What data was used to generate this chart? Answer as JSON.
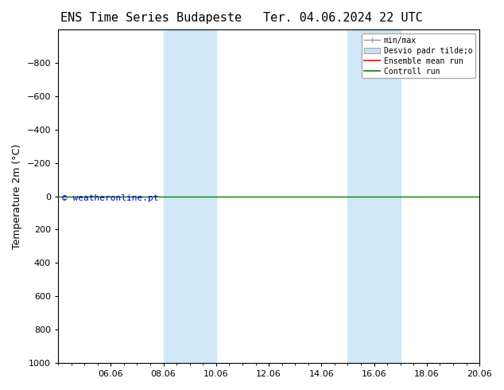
{
  "title_left": "ENS Time Series Budapeste",
  "title_right": "Ter. 04.06.2024 22 UTC",
  "ylabel": "Temperature 2m (°C)",
  "ylim": [
    -1000,
    1000
  ],
  "yticks": [
    -800,
    -600,
    -400,
    -200,
    0,
    200,
    400,
    600,
    800,
    1000
  ],
  "x_min": 0,
  "x_max": 16,
  "x_tick_labels": [
    "06.06",
    "08.06",
    "10.06",
    "12.06",
    "14.06",
    "16.06",
    "18.06",
    "20.06"
  ],
  "x_tick_positions": [
    2,
    4,
    6,
    8,
    10,
    12,
    14,
    16
  ],
  "shaded_bands": [
    {
      "x_start": 4,
      "x_end": 6
    },
    {
      "x_start": 11,
      "x_end": 13
    }
  ],
  "horizontal_line_y": 0,
  "control_run_color": "#008000",
  "ensemble_mean_color": "#ff0000",
  "min_max_color": "#999999",
  "desvio_color": "#c8dff0",
  "background_color": "#ffffff",
  "band_color": "#d0e8f8",
  "watermark_text": "© weatheronline.pt",
  "watermark_color": "#0000cc",
  "legend_labels": [
    "min/max",
    "Desvio padr tilde;o",
    "Ensemble mean run",
    "Controll run"
  ],
  "tick_fontsize": 8,
  "label_fontsize": 9,
  "title_fontsize": 11
}
